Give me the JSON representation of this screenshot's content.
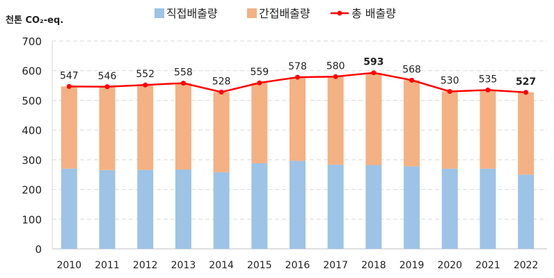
{
  "chart_data": {
    "type": "bar",
    "stacked": true,
    "ylabel": "천톤 CO₂-eq.",
    "ylim": [
      0,
      700
    ],
    "yticks": [
      0,
      100,
      200,
      300,
      400,
      500,
      600,
      700
    ],
    "grid": true,
    "legend_position": "top",
    "categories": [
      "2010",
      "2011",
      "2012",
      "2013",
      "2014",
      "2015",
      "2016",
      "2017",
      "2018",
      "2019",
      "2020",
      "2021",
      "2022"
    ],
    "series": [
      {
        "name": "직접배출량",
        "type": "bar",
        "color": "#9DC3E6",
        "values": [
          270,
          265,
          266,
          267,
          258,
          288,
          296,
          283,
          282,
          278,
          270,
          270,
          250
        ]
      },
      {
        "name": "간접배출량",
        "type": "bar",
        "color": "#F4B183",
        "values": [
          277,
          281,
          286,
          291,
          270,
          271,
          282,
          297,
          311,
          290,
          260,
          265,
          277
        ]
      },
      {
        "name": "총 배출량",
        "type": "line",
        "color": "#FF0000",
        "values": [
          547,
          546,
          552,
          558,
          528,
          559,
          578,
          580,
          593,
          568,
          530,
          535,
          527
        ]
      }
    ],
    "bold_labels": [
      "2018",
      "2022"
    ]
  }
}
